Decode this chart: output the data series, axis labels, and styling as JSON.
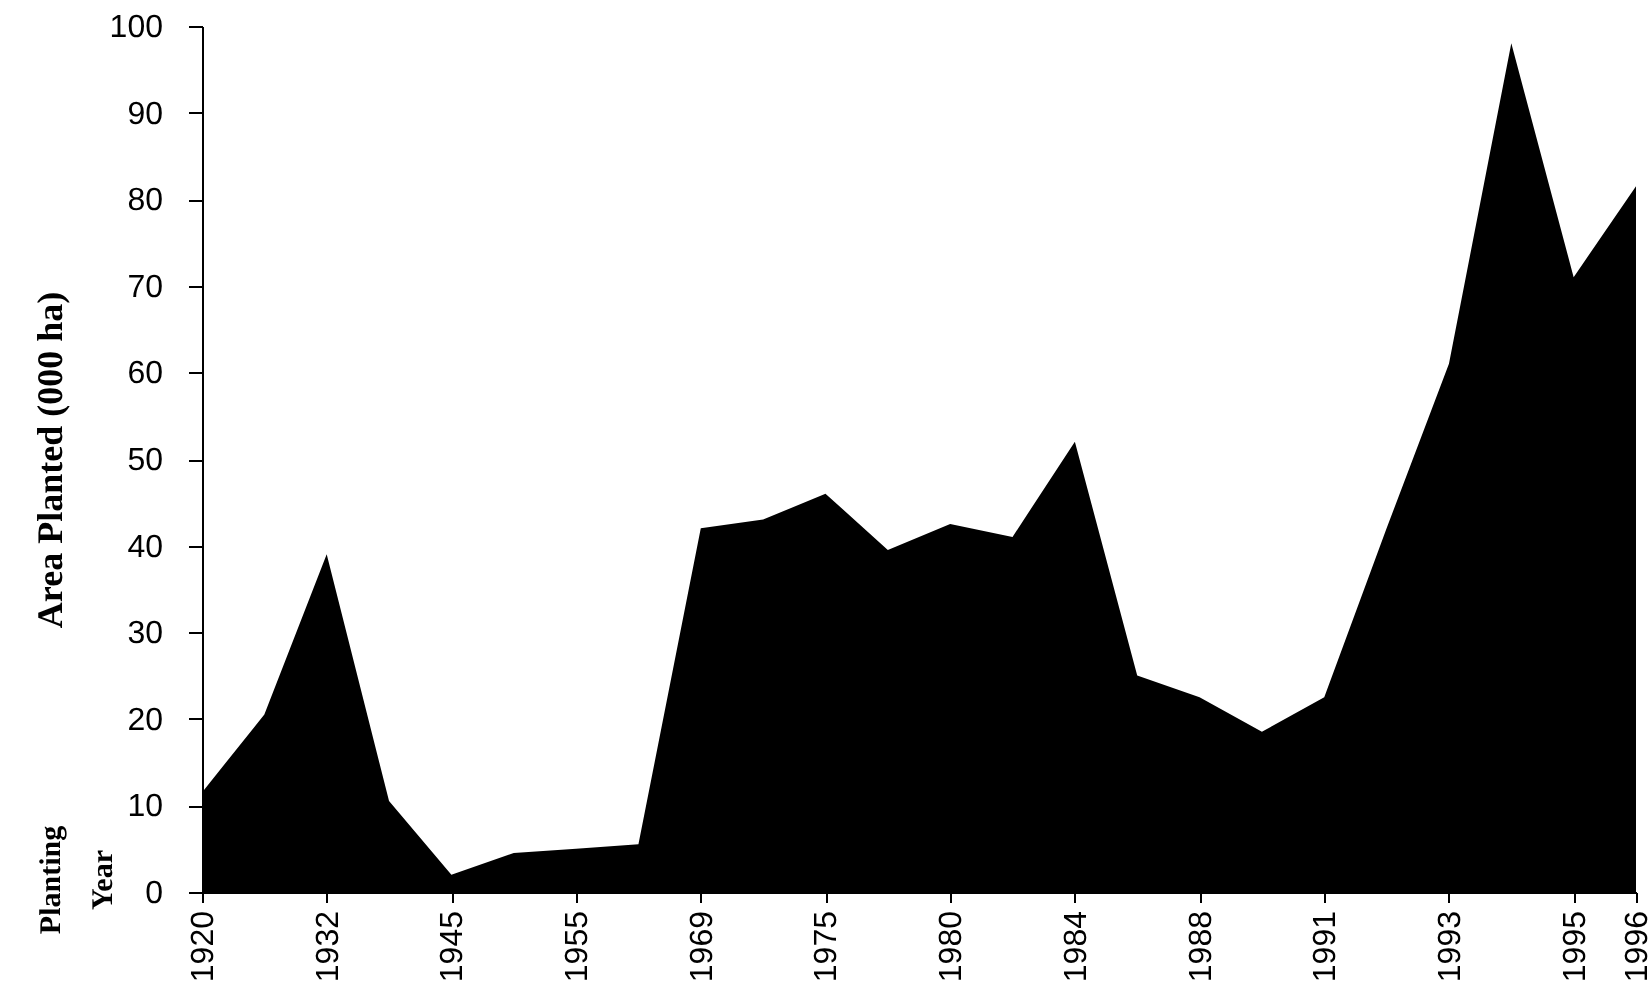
{
  "chart_data": {
    "type": "area",
    "color": "#000000",
    "ylabel": "Area Planted (000 ha)",
    "annotations": [
      "Planting Year"
    ],
    "categories": [
      "1920",
      null,
      "1932",
      null,
      "1945",
      null,
      "1955",
      null,
      "1969",
      null,
      "1975",
      null,
      "1980",
      null,
      "1984",
      null,
      "1988",
      null,
      "1991",
      null,
      "1993",
      null,
      "1995",
      "1996"
    ],
    "values": [
      11.5,
      20.5,
      39,
      10.5,
      2,
      4.5,
      5,
      5.5,
      42,
      43,
      46,
      39.5,
      42.5,
      41,
      52,
      25,
      22.5,
      18.5,
      22.5,
      42,
      61,
      98,
      71,
      81.5
    ],
    "ylim": [
      0,
      100
    ],
    "yticks": [
      0,
      10,
      20,
      30,
      40,
      50,
      60,
      70,
      80,
      90,
      100
    ]
  }
}
